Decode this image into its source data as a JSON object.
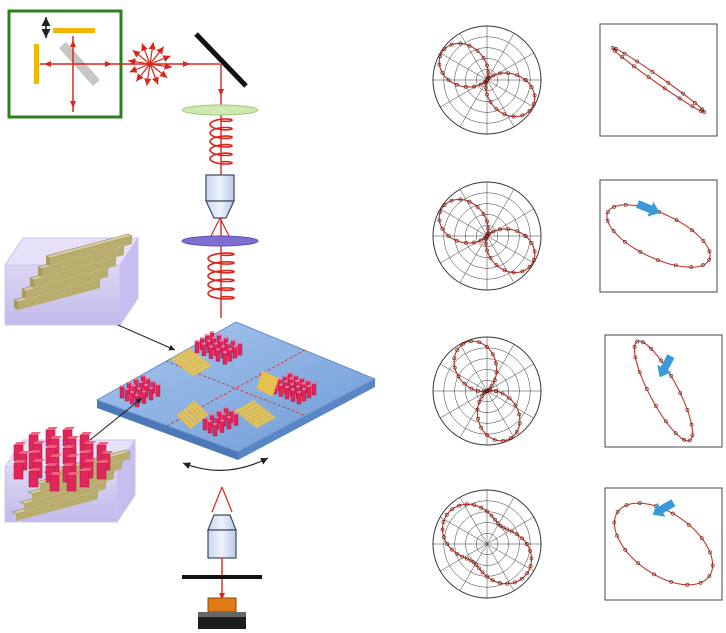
{
  "figure": {
    "optical_path": {
      "components": [
        "michelson-interferometer",
        "scattered-source",
        "tilted-mirror",
        "polarizer",
        "quarter-wave-plate",
        "objective-lens-top",
        "metasurface-sample",
        "objective-lens-bottom",
        "analyzer-slit",
        "camera-detector"
      ],
      "interferometer_border_color": "#2e7d1f",
      "beam_color": "#d9261c",
      "bar_color": "#f2b705",
      "plate_top_color": "#cfe9b0",
      "plate_bottom_color": "#7f6fd1",
      "sample_base_color": "#7fa9dc",
      "nanopillar_color": "#e0265a",
      "grating_color": "#e8c14a"
    },
    "insets": [
      {
        "id": "grating-block-inset",
        "content": "parallel-gratings"
      },
      {
        "id": "pillar-grating-inset",
        "content": "pillars-over-gratings"
      }
    ],
    "measurement_rows": [
      {
        "row": 1,
        "polar": "figure-eight-tilted",
        "ellipse_tilt_deg": -35,
        "ellipse_ratio": 0.06,
        "has_arrow": false
      },
      {
        "row": 2,
        "polar": "figure-eight-tilted",
        "ellipse_tilt_deg": -25,
        "ellipse_ratio": 0.4,
        "has_arrow": true
      },
      {
        "row": 3,
        "polar": "figure-eight-steep",
        "ellipse_tilt_deg": -62,
        "ellipse_ratio": 0.25,
        "has_arrow": true
      },
      {
        "row": 4,
        "polar": "peanut-tilted",
        "ellipse_tilt_deg": -35,
        "ellipse_ratio": 0.55,
        "has_arrow": true
      }
    ],
    "trace_color": "#c0392b",
    "arrow_color": "#3a9ad9"
  }
}
